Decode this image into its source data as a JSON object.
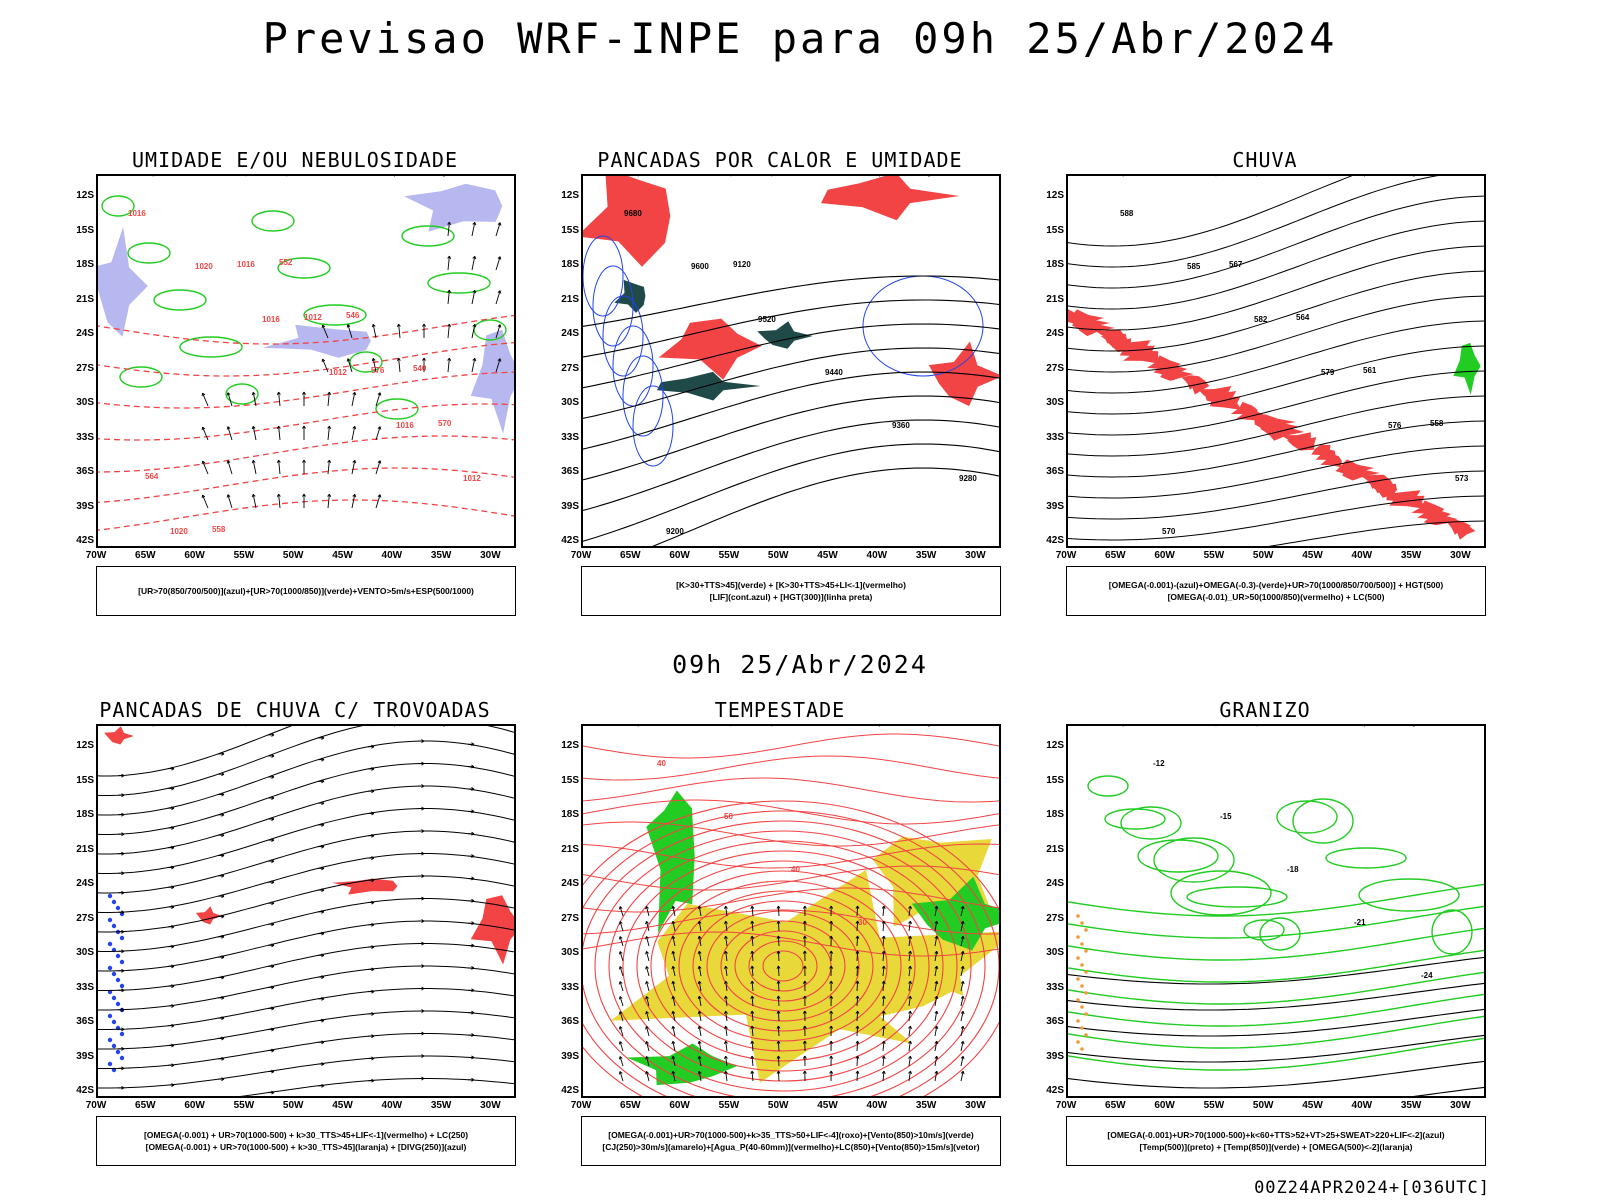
{
  "title": "Previsao WRF-INPE  para 09h 25/Abr/2024",
  "mid_time": "09h 25/Abr/2024",
  "footer": "00Z24APR2024+[036UTC]",
  "axes": {
    "y_ticks": [
      "12S",
      "15S",
      "18S",
      "21S",
      "24S",
      "27S",
      "30S",
      "33S",
      "36S",
      "39S",
      "42S"
    ],
    "x_ticks": [
      "70W",
      "65W",
      "60W",
      "55W",
      "50W",
      "45W",
      "40W",
      "35W",
      "30W"
    ]
  },
  "colors": {
    "red": "#f24444",
    "green": "#22cc22",
    "blue": "#2244ee",
    "lavender": "#b8b8f0",
    "yellow": "#e8d83a",
    "darkteal": "#1f4a48",
    "orange": "#f09a3a",
    "black": "#000000"
  },
  "panels": [
    {
      "id": "umidade",
      "title": "UMIDADE E/OU NEBULOSIDADE",
      "legend": [
        "[UR>70(850/700/500)](azul)+[UR>70(1000/850)](verde)+VENTO>5m/s+ESP(500/1000)"
      ],
      "contour_labels": [
        "1016",
        "1020",
        "1016",
        "1012",
        "1016",
        "1012",
        "1020",
        "1016",
        "1012",
        "576",
        "570",
        "564",
        "558",
        "552",
        "546",
        "540"
      ]
    },
    {
      "id": "pancadas-calor",
      "title": "PANCADAS POR CALOR E UMIDADE",
      "legend": [
        "[K>30+TTS>45](verde) + [K>30+TTS>45+LI<-1](vermelho)",
        "[LIF](cont.azul) + [HGT(300)](linha preta)"
      ],
      "contour_labels": [
        "9680",
        "9600",
        "9520",
        "9440",
        "9360",
        "9280",
        "9200",
        "9120"
      ]
    },
    {
      "id": "chuva",
      "title": "CHUVA",
      "legend": [
        "[OMEGA(-0.001)-(azul)+OMEGA(-0.3)-(verde)+UR>70(1000/850/700/500)] + HGT(500)",
        "[OMEGA(-0.01)_UR>50(1000/850)(vermelho) + LC(500)"
      ],
      "contour_labels": [
        "588",
        "585",
        "582",
        "579",
        "576",
        "573",
        "570",
        "567",
        "564",
        "561",
        "558"
      ]
    },
    {
      "id": "pancadas-trovoadas",
      "title": "PANCADAS DE CHUVA C/ TROVOADAS",
      "legend": [
        "[OMEGA(-0.001) + UR>70(1000-500) + k>30_TTS>45+LIF<-1](vermelho) + LC(250)",
        "[OMEGA(-0.001) + UR>70(1000-500) + k>30_TTS>45](laranja) + [DIVG(250)](azul)"
      ],
      "contour_labels": []
    },
    {
      "id": "tempestade",
      "title": "TEMPESTADE",
      "legend": [
        "[OMEGA(-0.001)+UR>70(1000-500)+k>35_TTS>50+LIF<-4](roxo)+[Vento(850)>10m/s](verde)",
        "[CJ(250)>30m/s](amarelo)+[Agua_P(40-60mm)](vermelho)+LC(850)+[Vento(850)>15m/s](vetor)"
      ],
      "contour_labels": [
        "40",
        "50",
        "40",
        "30"
      ]
    },
    {
      "id": "granizo",
      "title": "GRANIZO",
      "legend": [
        "[OMEGA(-0.001)+UR>70(1000-500)+k<60+TTS>52+VT>25+SWEAT>220+LIF<-2](azul)",
        "[Temp(500)](preto) + [Temp(850)](verde) + [OMEGA(500)<-2](laranja)"
      ],
      "contour_labels": [
        "-12",
        "-15",
        "-18",
        "-21",
        "-24"
      ]
    }
  ]
}
